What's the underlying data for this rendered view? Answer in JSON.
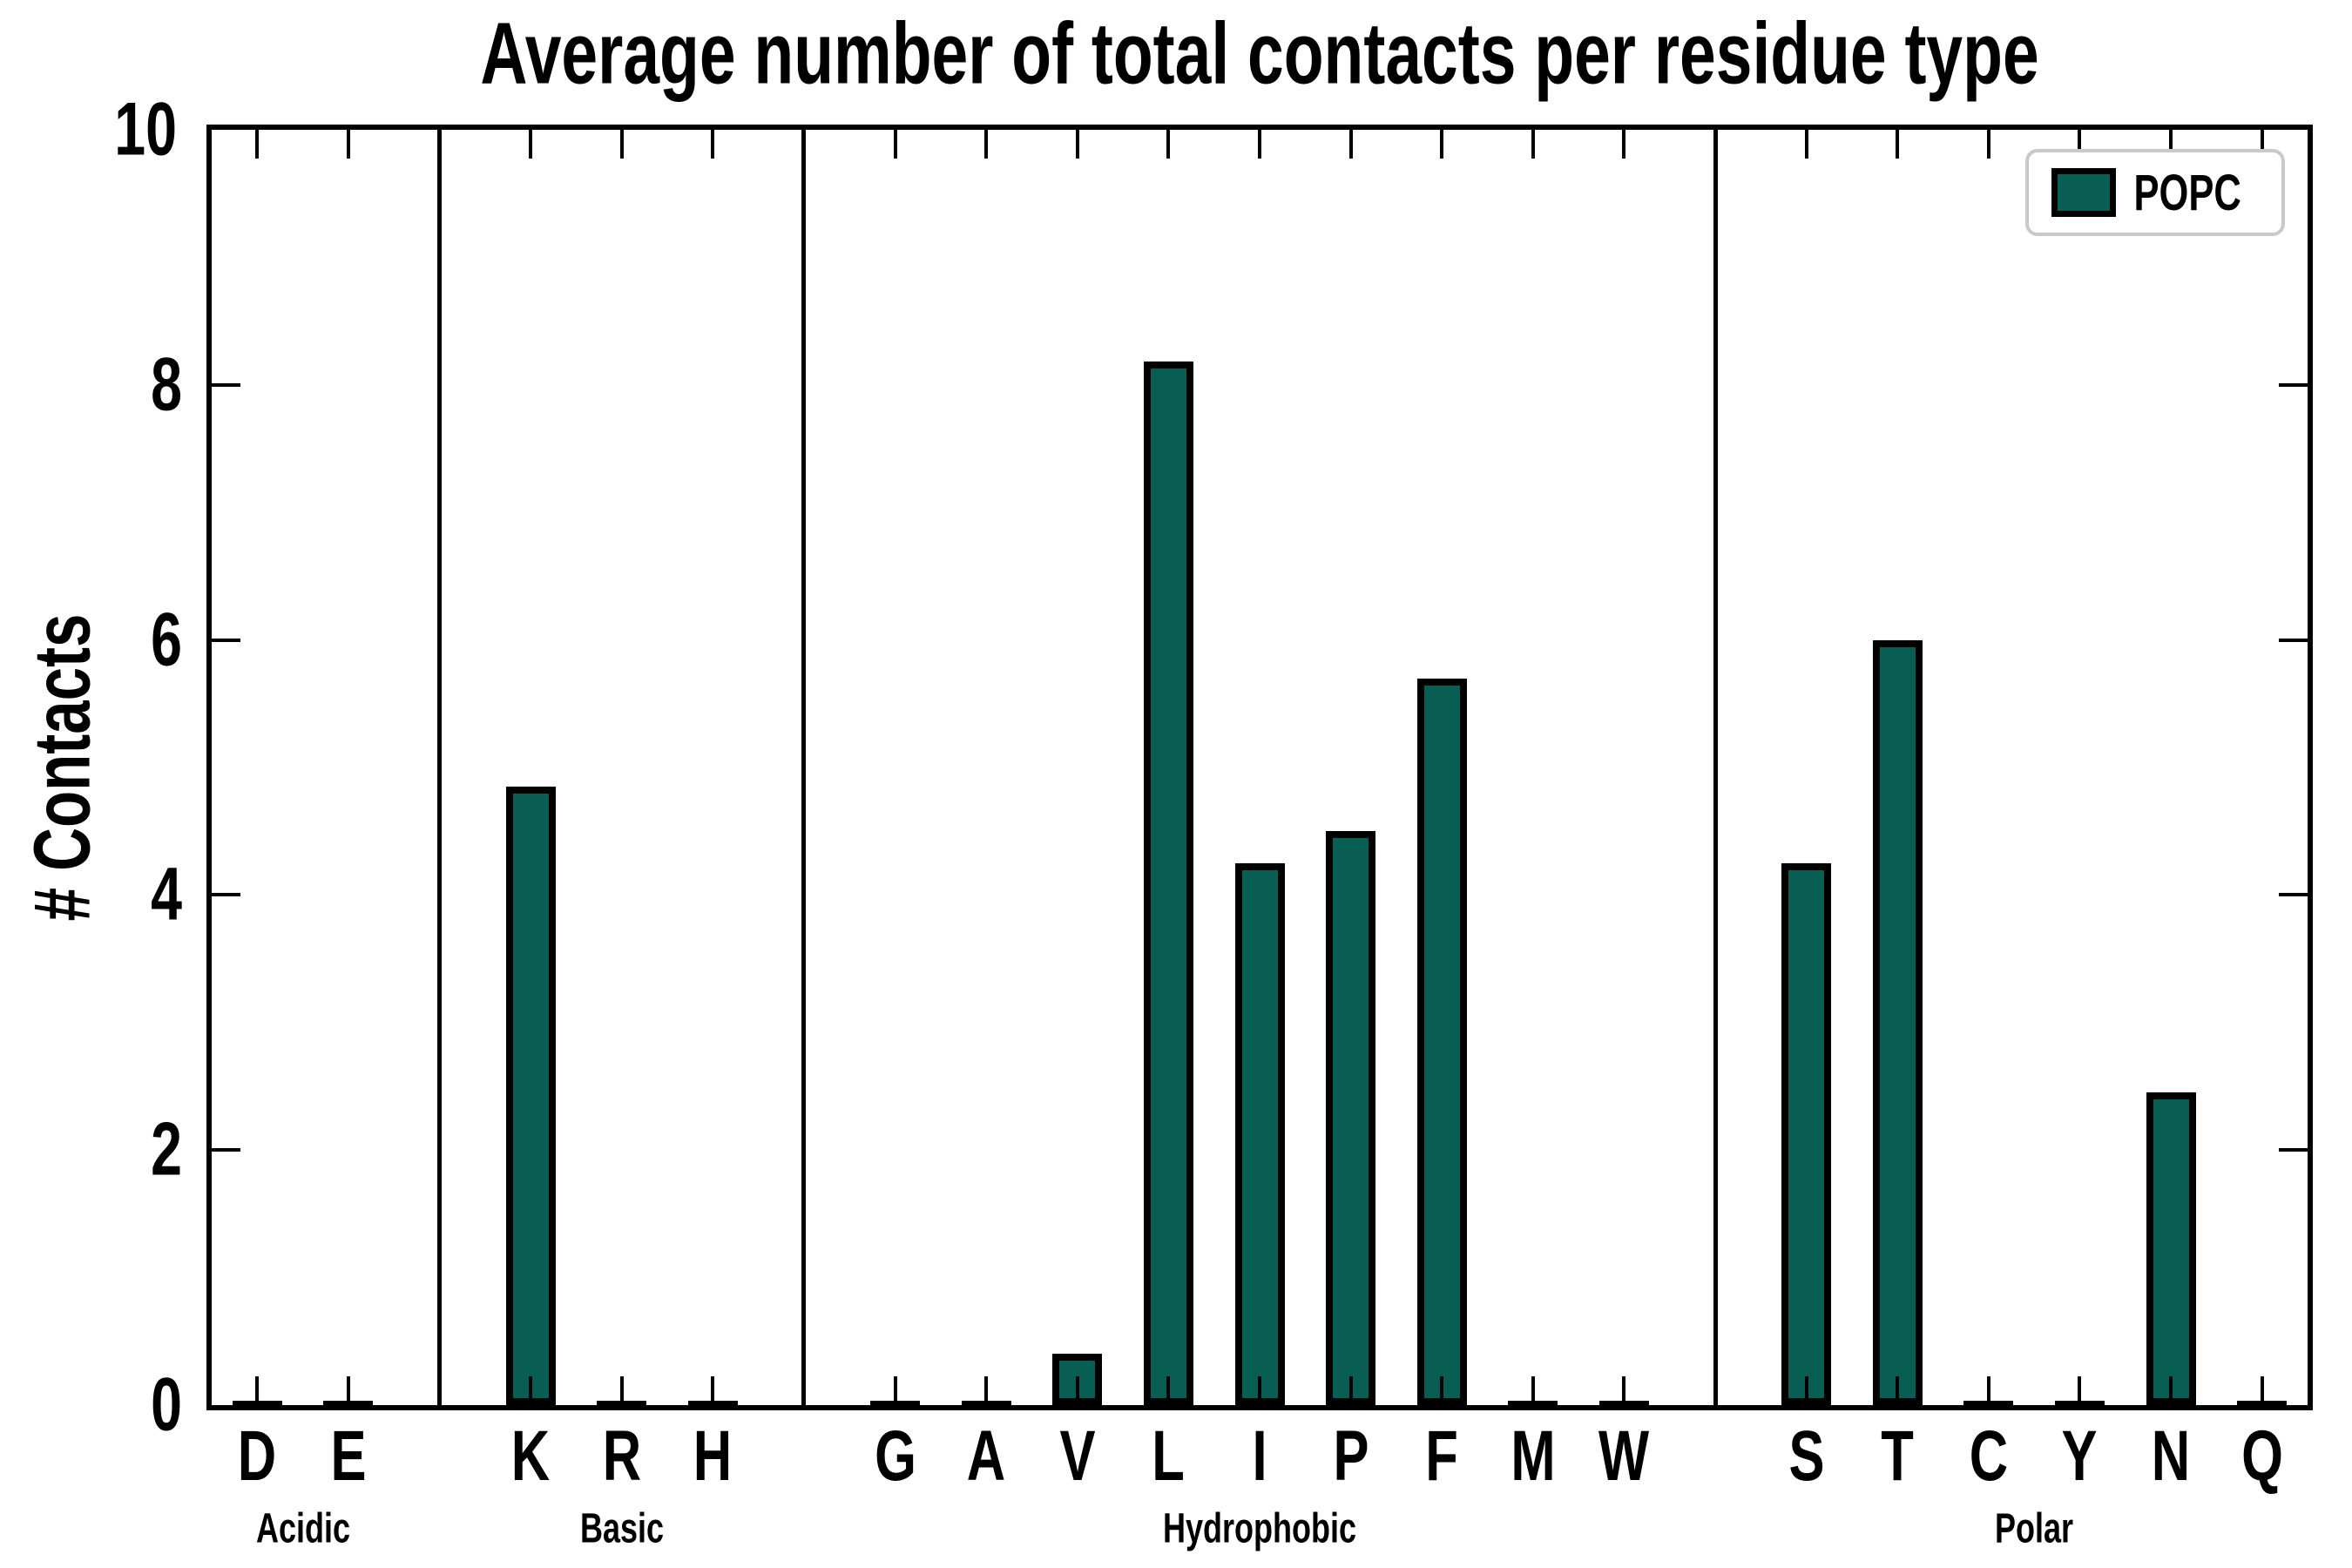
{
  "chart_data": {
    "type": "bar",
    "title": "Average number of total contacts per residue type",
    "xlabel": "",
    "ylabel": "# Contacts",
    "ylim": [
      0,
      10
    ],
    "yticks": [
      0,
      2,
      4,
      6,
      8,
      10
    ],
    "grid": false,
    "legend": [
      "POPC"
    ],
    "legend_position": "upper right",
    "series_name": "POPC",
    "groups": [
      {
        "label": "Acidic",
        "categories": [
          "D",
          "E"
        ],
        "values": [
          0,
          0
        ]
      },
      {
        "label": "Basic",
        "categories": [
          "K",
          "R",
          "H"
        ],
        "values": [
          4.85,
          0,
          0
        ]
      },
      {
        "label": "Hydrophobic",
        "categories": [
          "G",
          "A",
          "V",
          "L",
          "I",
          "P",
          "F",
          "M",
          "W"
        ],
        "values": [
          0,
          0,
          0.4,
          8.18,
          4.25,
          4.5,
          5.7,
          0,
          0
        ]
      },
      {
        "label": "Polar",
        "categories": [
          "S",
          "T",
          "C",
          "Y",
          "N",
          "Q"
        ],
        "values": [
          4.25,
          6.0,
          0,
          0,
          2.45,
          0
        ]
      }
    ]
  },
  "colors": {
    "bar_fill": "#085e52",
    "bar_edge": "#000000",
    "axis": "#000000",
    "legend_border": "#c9c9c9"
  }
}
